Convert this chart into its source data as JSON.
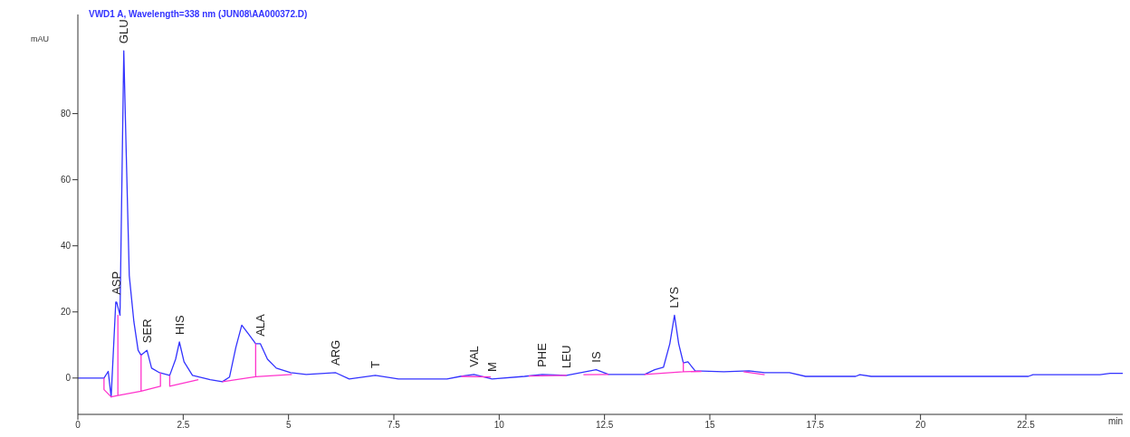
{
  "chart_data": {
    "type": "line",
    "title": "VWD1 A, Wavelength=338 nm (JUN08\\AA000372.D)",
    "xlabel": "min",
    "ylabel": "mAU",
    "xlim": [
      0,
      24.8
    ],
    "ylim": [
      -11,
      110
    ],
    "xticks": [
      0,
      2.5,
      5,
      7.5,
      10,
      12.5,
      15,
      17.5,
      20,
      22.5
    ],
    "yticks": [
      0,
      20,
      40,
      60,
      80
    ],
    "grid": false,
    "legend": false,
    "marker": "none",
    "line_style": "solid",
    "series": [
      {
        "color": "#3333ff",
        "x": [
          0,
          0.62,
          0.72,
          0.79,
          0.9,
          0.92,
          1.0,
          1.09,
          1.15,
          1.22,
          1.33,
          1.43,
          1.5,
          1.64,
          1.75,
          1.94,
          2.18,
          2.32,
          2.41,
          2.52,
          2.72,
          3.14,
          3.43,
          3.6,
          3.75,
          3.89,
          4.07,
          4.22,
          4.33,
          4.5,
          4.71,
          5.05,
          5.42,
          6.12,
          6.44,
          7.06,
          7.61,
          8.76,
          9.08,
          9.4,
          9.83,
          10.6,
          11.02,
          11.6,
          12.3,
          12.6,
          13.45,
          13.69,
          13.9,
          14.05,
          14.16,
          14.26,
          14.37,
          14.48,
          14.65,
          15.33,
          15.93,
          16.3,
          16.89,
          17.27,
          18.46,
          18.56,
          18.83,
          22.56,
          22.67,
          24.26,
          24.5,
          24.8
        ],
        "values": [
          0,
          0,
          2,
          -5.7,
          23,
          23,
          19,
          99,
          67,
          31,
          17,
          8.4,
          6.9,
          8.4,
          3,
          1.6,
          0.8,
          5.7,
          10.9,
          4.9,
          0.8,
          -0.5,
          -1.1,
          0.3,
          9.3,
          16,
          13,
          10.4,
          10.4,
          5.7,
          3,
          1.6,
          1.1,
          1.6,
          -0.3,
          0.8,
          -0.3,
          -0.3,
          0.5,
          1.1,
          -0.3,
          0.5,
          1.1,
          0.8,
          2.5,
          1.1,
          1.1,
          2.5,
          3.3,
          10.4,
          19,
          10.4,
          4.6,
          4.9,
          2.2,
          1.9,
          2.2,
          1.6,
          1.6,
          0.5,
          0.5,
          1,
          0.5,
          0.5,
          1,
          1,
          1.4,
          1.4
        ]
      },
      {
        "color": "#ff33cc",
        "x": [
          0.62,
          0.62,
          0.79,
          0.95,
          0.95,
          0.95,
          1.5,
          1.5,
          1.5,
          1.96,
          1.96
        ],
        "values": [
          0,
          -3.5,
          -5.7,
          -5.3,
          19,
          -5.3,
          -4.0,
          6.9,
          -4.0,
          -2.5,
          1.6
        ]
      },
      {
        "color": "#ff33cc",
        "x": [
          2.18,
          2.18,
          2.86
        ],
        "values": [
          0.8,
          -2.5,
          -0.5
        ]
      },
      {
        "color": "#ff33cc",
        "x": [
          3.43,
          4.22,
          4.22,
          4.22,
          5.08
        ],
        "values": [
          -1.1,
          0.4,
          10.4,
          0.4,
          1.1
        ]
      },
      {
        "color": "#ff33cc",
        "x": [
          9.1,
          9.8
        ],
        "values": [
          0.5,
          0.3
        ]
      },
      {
        "color": "#ff33cc",
        "x": [
          10.7,
          11.6
        ],
        "values": [
          0.6,
          0.8
        ]
      },
      {
        "color": "#ff33cc",
        "x": [
          12.0,
          12.6
        ],
        "values": [
          1.0,
          1.1
        ]
      },
      {
        "color": "#ff33cc",
        "x": [
          13.45,
          14.37,
          14.37,
          14.37,
          14.8
        ],
        "values": [
          1.1,
          1.9,
          4.6,
          1.9,
          2.0
        ]
      },
      {
        "color": "#ff33cc",
        "x": [
          15.8,
          16.3
        ],
        "values": [
          1.9,
          1.0
        ]
      }
    ],
    "annotations": [
      {
        "text": "ASP",
        "x": 0.92,
        "y": 23
      },
      {
        "text": "GLU",
        "x": 1.09,
        "y": 99
      },
      {
        "text": "SER",
        "x": 1.64,
        "y": 8.4
      },
      {
        "text": "HIS",
        "x": 2.41,
        "y": 10.9
      },
      {
        "text": "ALA",
        "x": 4.33,
        "y": 10.4
      },
      {
        "text": "ARG",
        "x": 6.12,
        "y": 1.6
      },
      {
        "text": "T",
        "x": 7.06,
        "y": 0.8
      },
      {
        "text": "VAL",
        "x": 9.4,
        "y": 1.1
      },
      {
        "text": "M",
        "x": 9.83,
        "y": -0.3
      },
      {
        "text": "PHE",
        "x": 11.02,
        "y": 1.1
      },
      {
        "text": "LEU",
        "x": 11.6,
        "y": 0.8
      },
      {
        "text": "IS",
        "x": 12.3,
        "y": 2.5
      },
      {
        "text": "LYS",
        "x": 14.16,
        "y": 19
      }
    ]
  }
}
